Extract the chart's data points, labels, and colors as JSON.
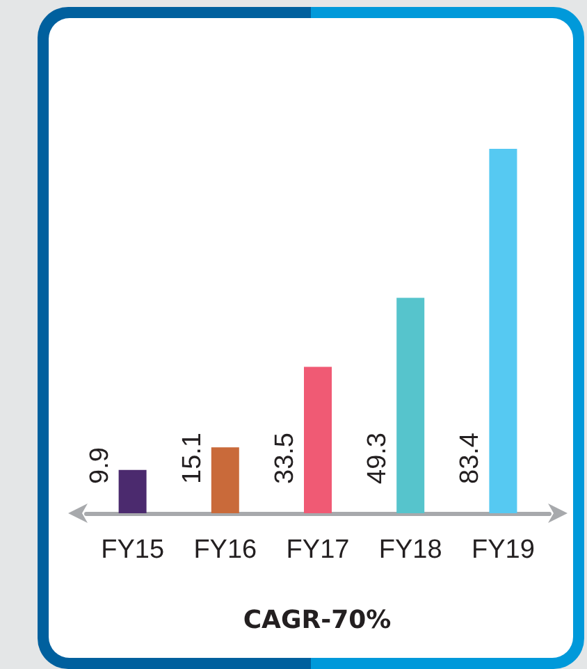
{
  "chart_data": {
    "type": "bar",
    "title": "CAGR-70%",
    "categories": [
      "FY15",
      "FY16",
      "FY17",
      "FY18",
      "FY19"
    ],
    "values": [
      9.9,
      15.1,
      33.5,
      49.3,
      83.4
    ],
    "colors": [
      "#4b2a6e",
      "#c96a3a",
      "#f05a74",
      "#56c4cc",
      "#56c9f2"
    ],
    "data_labels": true,
    "tick_labels": "x"
  }
}
